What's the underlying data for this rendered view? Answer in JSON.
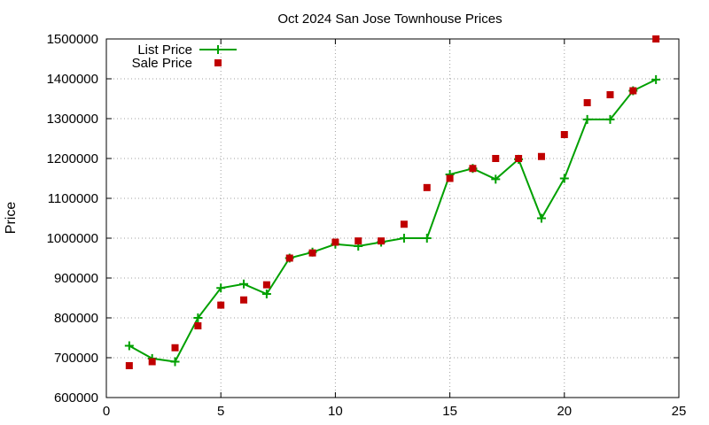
{
  "chart_data": {
    "type": "line",
    "title": "Oct 2024 San Jose Townhouse Prices",
    "xlabel": "",
    "ylabel": "Price",
    "xlim": [
      0,
      25
    ],
    "ylim": [
      600000,
      1500000
    ],
    "xticks": [
      0,
      5,
      10,
      15,
      20,
      25
    ],
    "yticks": [
      600000,
      700000,
      800000,
      900000,
      1000000,
      1100000,
      1200000,
      1300000,
      1400000,
      1500000
    ],
    "grid": true,
    "legend_position": "top-left",
    "series": [
      {
        "name": "List Price",
        "style": "linespoints",
        "marker": "plus",
        "color": "#00a000",
        "x": [
          1,
          2,
          3,
          4,
          5,
          6,
          7,
          8,
          9,
          10,
          11,
          12,
          13,
          14,
          15,
          16,
          17,
          18,
          19,
          20,
          21,
          22,
          23,
          24
        ],
        "values": [
          730000,
          698000,
          690000,
          800000,
          875000,
          885000,
          860000,
          950000,
          965000,
          985000,
          980000,
          990000,
          1000000,
          1000000,
          1160000,
          1175000,
          1148000,
          1198000,
          1050000,
          1150000,
          1298000,
          1298000,
          1370000,
          1398000
        ]
      },
      {
        "name": "Sale Price",
        "style": "points",
        "marker": "square",
        "color": "#c00000",
        "x": [
          1,
          2,
          3,
          4,
          5,
          6,
          7,
          8,
          9,
          10,
          11,
          12,
          13,
          14,
          15,
          16,
          17,
          18,
          19,
          20,
          21,
          22,
          23,
          24
        ],
        "values": [
          680000,
          690000,
          725000,
          780000,
          832000,
          845000,
          883000,
          950000,
          963000,
          990000,
          993000,
          993000,
          1035000,
          1127000,
          1150000,
          1175000,
          1200000,
          1200000,
          1205000,
          1260000,
          1340000,
          1360000,
          1370000,
          1500000
        ]
      }
    ]
  }
}
